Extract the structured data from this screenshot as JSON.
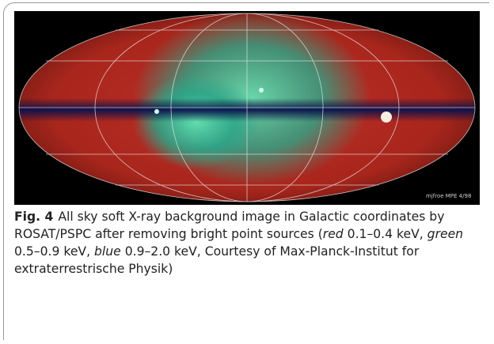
{
  "figure": {
    "image_credit": "mjfroe MPE 4/98",
    "label": "Fig. 4",
    "caption": [
      {
        "text": "All sky soft X-ray background image in Galactic coordinates by ROSAT/PSPC after removing bright point sources (",
        "italic": false
      },
      {
        "text": "red",
        "italic": true
      },
      {
        "text": " 0.1–0.4 keV, ",
        "italic": false
      },
      {
        "text": "green",
        "italic": true
      },
      {
        "text": " 0.5–0.9 keV, ",
        "italic": false
      },
      {
        "text": "blue",
        "italic": true
      },
      {
        "text": " 0.9–2.0 keV, Courtesy of Max-Planck-Institut for extraterrestrische Physik)",
        "italic": false
      }
    ]
  }
}
